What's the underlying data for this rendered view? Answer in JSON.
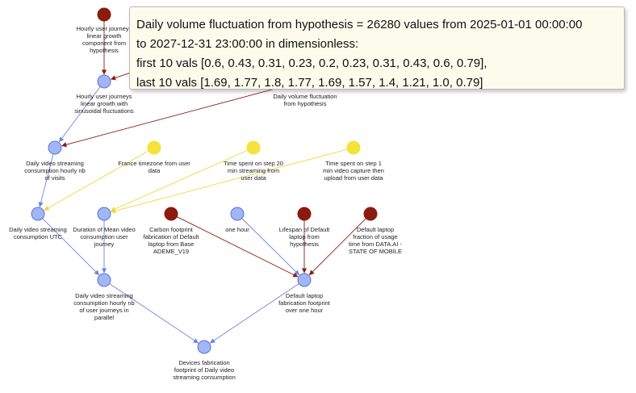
{
  "colors": {
    "blue_node": "#a2b5f5",
    "blue_stroke": "#5a74d8",
    "red_node": "#8b1a10",
    "yellow_node": "#f5e23a",
    "blue_edge": "#6d85e2",
    "red_edge": "#8b1a10",
    "yellow_edge": "#f0d93a"
  },
  "nodes": [
    {
      "id": "n1",
      "kind": "red",
      "label": "Hourly user journeys linear growth component from hypothesis"
    },
    {
      "id": "n2",
      "kind": "red",
      "label": ""
    },
    {
      "id": "n3",
      "kind": "blue",
      "label": "Hourly user journeys linear growth with sinusoidal fluctuations"
    },
    {
      "id": "n4",
      "kind": "blue",
      "label": "Daily video streaming consumption hourly nb of visits"
    },
    {
      "id": "n5",
      "kind": "blue",
      "label": "Daily video streaming consumption UTC"
    },
    {
      "id": "n6",
      "kind": "yellow",
      "label": "France timezone from user data"
    },
    {
      "id": "n7",
      "kind": "yellow",
      "label": "Time spent on step 20 min streaming from user data"
    },
    {
      "id": "n8",
      "kind": "yellow",
      "label": "Time spent on step 1 min video capture then upload from user data"
    },
    {
      "id": "n9",
      "kind": "blue",
      "label": "Duration of Mean video consumption user journey"
    },
    {
      "id": "n10",
      "kind": "red",
      "label": "Carbon footprint fabrication of Default laptop from Base ADEME_V19"
    },
    {
      "id": "n11",
      "kind": "blue",
      "label": "one hour"
    },
    {
      "id": "n12",
      "kind": "red",
      "label": "Lifespan of Default laptop from hypothesis"
    },
    {
      "id": "n13",
      "kind": "red",
      "label": "Default laptop fraction of usage time from DATA.AI - STATE OF MOBILE"
    },
    {
      "id": "n14",
      "kind": "blue",
      "label": "Daily video streaming consumption hourly nb of user journeys in parallel"
    },
    {
      "id": "n15",
      "kind": "blue",
      "label": "Default laptop fabrication footprint over one hour"
    },
    {
      "id": "n16",
      "kind": "blue",
      "label": "Devices fabrication footprint of Daily video streaming consumption"
    },
    {
      "id": "n17",
      "kind": "none",
      "label": "Daily volume fluctuation from hypothesis"
    }
  ],
  "edges": [
    {
      "from": "n1",
      "to": "n3",
      "color": "red"
    },
    {
      "from": "n2",
      "to": "n3",
      "color": "red"
    },
    {
      "from": "n3",
      "to": "n4",
      "color": "blue"
    },
    {
      "from": "n17",
      "to": "n4",
      "color": "red"
    },
    {
      "from": "n4",
      "to": "n5",
      "color": "blue"
    },
    {
      "from": "n6",
      "to": "n5",
      "color": "yellow"
    },
    {
      "from": "n7",
      "to": "n9",
      "color": "yellow"
    },
    {
      "from": "n8",
      "to": "n9",
      "color": "yellow"
    },
    {
      "from": "n5",
      "to": "n14",
      "color": "blue"
    },
    {
      "from": "n9",
      "to": "n14",
      "color": "blue"
    },
    {
      "from": "n10",
      "to": "n15",
      "color": "red"
    },
    {
      "from": "n11",
      "to": "n15",
      "color": "blue"
    },
    {
      "from": "n12",
      "to": "n15",
      "color": "red"
    },
    {
      "from": "n13",
      "to": "n15",
      "color": "red"
    },
    {
      "from": "n14",
      "to": "n16",
      "color": "blue"
    },
    {
      "from": "n15",
      "to": "n16",
      "color": "blue"
    }
  ],
  "tooltip": {
    "line1": "Daily volume fluctuation from hypothesis = 26280 values from 2025-01-01 00:00:00",
    "line2": "to 2027-12-31 23:00:00 in dimensionless:",
    "line3": "first 10 vals [0.6, 0.43, 0.31, 0.23, 0.2, 0.23, 0.31, 0.43, 0.6, 0.79],",
    "line4": "last 10 vals [1.69, 1.77, 1.8, 1.77, 1.69, 1.57, 1.4, 1.21, 1.0, 0.79]"
  }
}
